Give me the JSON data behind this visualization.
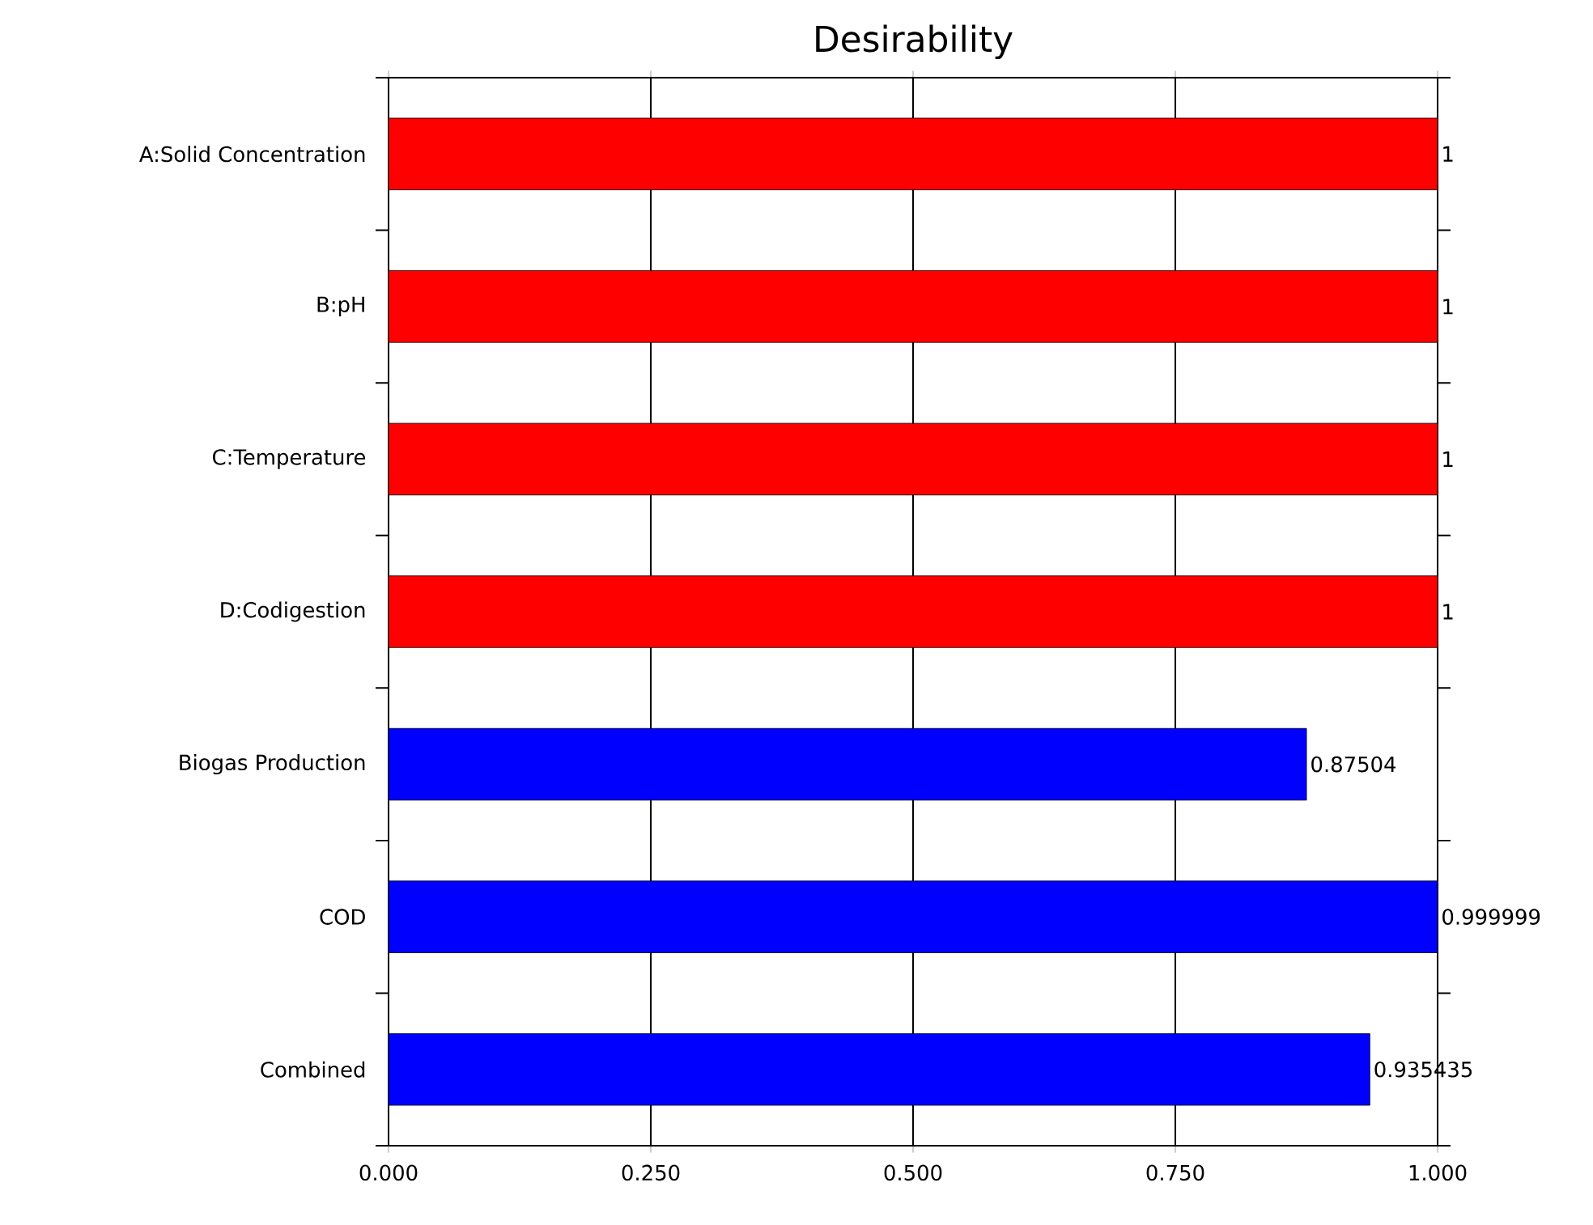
{
  "chart_data": {
    "type": "bar",
    "orientation": "horizontal",
    "title": "Desirability",
    "categories": [
      "A:Solid Concentration",
      "B:pH",
      "C:Temperature",
      "D:Codigestion",
      "Biogas Production",
      "COD",
      "Combined"
    ],
    "values": [
      1,
      1,
      1,
      1,
      0.87504,
      0.999999,
      0.935435
    ],
    "colors": [
      "#ff0000",
      "#ff0000",
      "#ff0000",
      "#ff0000",
      "#0000ff",
      "#0000ff",
      "#0000ff"
    ],
    "xlim": [
      0,
      1
    ],
    "xticks": [
      {
        "value": 0,
        "label": "0.000"
      },
      {
        "value": 0.25,
        "label": "0.250"
      },
      {
        "value": 0.5,
        "label": "0.500"
      },
      {
        "value": 0.75,
        "label": "0.750"
      },
      {
        "value": 1,
        "label": "1.000"
      }
    ],
    "grid": "x",
    "data_labels": true
  }
}
